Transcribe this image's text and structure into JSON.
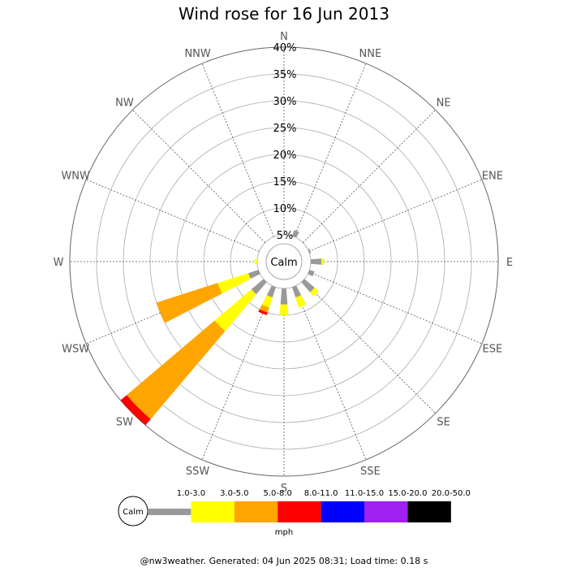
{
  "title": "Wind rose for 16 Jun 2013",
  "footer": "@nw3weather. Generated: 04 Jun 2025 08:31; Load time: 0.18 s",
  "calm_label": "Calm",
  "unit_label": "mph",
  "chart_data": {
    "type": "wind-rose",
    "title": "Wind rose for 16 Jun 2013",
    "radial_ticks": [
      "5%",
      "10%",
      "15%",
      "20%",
      "25%",
      "30%",
      "35%",
      "40%"
    ],
    "radial_max": 40,
    "calm_radius": 5,
    "directions": [
      "N",
      "NNE",
      "NE",
      "ENE",
      "E",
      "ESE",
      "SE",
      "SSE",
      "S",
      "SSW",
      "SW",
      "WSW",
      "W",
      "WNW",
      "NW",
      "NNW"
    ],
    "speed_bins": [
      {
        "label": "1.0-3.0",
        "color": "#999999"
      },
      {
        "label": "3.0-5.0",
        "color": "#ffff00"
      },
      {
        "label": "5.0-8.0",
        "color": "#ffa500"
      },
      {
        "label": "8.0-11.0",
        "color": "#ff0000"
      },
      {
        "label": "11.0-15.0",
        "color": "#0000ff"
      },
      {
        "label": "15.0-20.0",
        "color": "#a020f0"
      },
      {
        "label": "20.0-50.0",
        "color": "#000000"
      }
    ],
    "frequencies": {
      "N": [
        0,
        0,
        0,
        0,
        0,
        0,
        0
      ],
      "NNE": [
        1.2,
        0,
        0,
        0,
        0,
        0,
        0
      ],
      "NE": [
        0,
        0,
        0,
        0,
        0,
        0,
        0
      ],
      "ENE": [
        0.3,
        0,
        0,
        0,
        0,
        0,
        0
      ],
      "E": [
        2.0,
        0.5,
        0,
        0,
        0,
        0,
        0
      ],
      "ESE": [
        1.0,
        0,
        0,
        0,
        0,
        0,
        0
      ],
      "SE": [
        2.5,
        1.0,
        0,
        0,
        0,
        0,
        0
      ],
      "SSE": [
        2.0,
        2.0,
        0,
        0,
        0,
        0,
        0
      ],
      "S": [
        3.0,
        2.0,
        0,
        0,
        0,
        0,
        0
      ],
      "SSW": [
        2.0,
        2.0,
        1.0,
        0.5,
        0,
        0,
        0
      ],
      "SW": [
        3.0,
        9.0,
        21.5,
        1.5,
        0,
        0,
        0
      ],
      "WSW": [
        2.0,
        6.0,
        12.0,
        0,
        0,
        0,
        0
      ],
      "W": [
        0,
        0.5,
        0,
        0,
        0,
        0,
        0
      ],
      "WNW": [
        0,
        0,
        0,
        0,
        0,
        0,
        0
      ],
      "NW": [
        0,
        0,
        0,
        0,
        0,
        0,
        0
      ],
      "NNW": [
        0,
        0,
        0,
        0,
        0,
        0,
        0
      ]
    }
  }
}
